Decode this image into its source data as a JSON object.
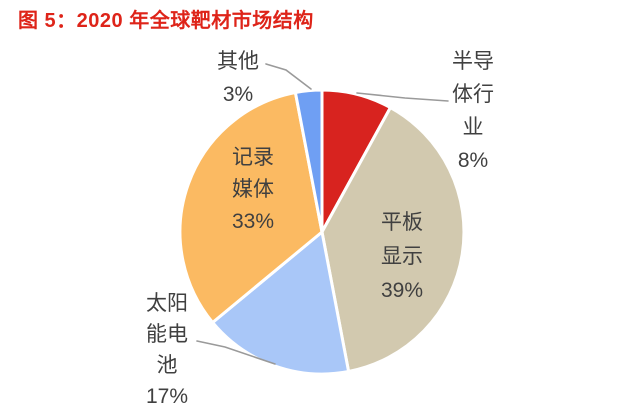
{
  "title": "图 5：2020 年全球靶材市场结构",
  "colors": {
    "title_text": "#DE2419",
    "label_text": "#404040",
    "leader_line": "#9A9A9A",
    "slice_border": "#FFFFFF",
    "background": "#FFFFFF"
  },
  "chart_data": {
    "type": "pie",
    "title": "2020 年全球靶材市场结构",
    "start_angle_deg": 0,
    "direction": "clockwise",
    "legend": "none",
    "slices": [
      {
        "name": "半导体行业",
        "value": 8,
        "pct_label": "8%",
        "color": "#D8231F",
        "label_lines": [
          "半导",
          "体行",
          "业"
        ]
      },
      {
        "name": "平板显示",
        "value": 39,
        "pct_label": "39%",
        "color": "#D2C9AF",
        "label_lines": [
          "平板",
          "显示"
        ]
      },
      {
        "name": "太阳能电池",
        "value": 17,
        "pct_label": "17%",
        "color": "#A9C7F8",
        "label_lines": [
          "太阳",
          "能电",
          "池"
        ]
      },
      {
        "name": "记录媒体",
        "value": 33,
        "pct_label": "33%",
        "color": "#FBBA62",
        "label_lines": [
          "记录",
          "媒体"
        ]
      },
      {
        "name": "其他",
        "value": 3,
        "pct_label": "3%",
        "color": "#6F9FF3",
        "label_lines": [
          "其他"
        ]
      }
    ]
  }
}
